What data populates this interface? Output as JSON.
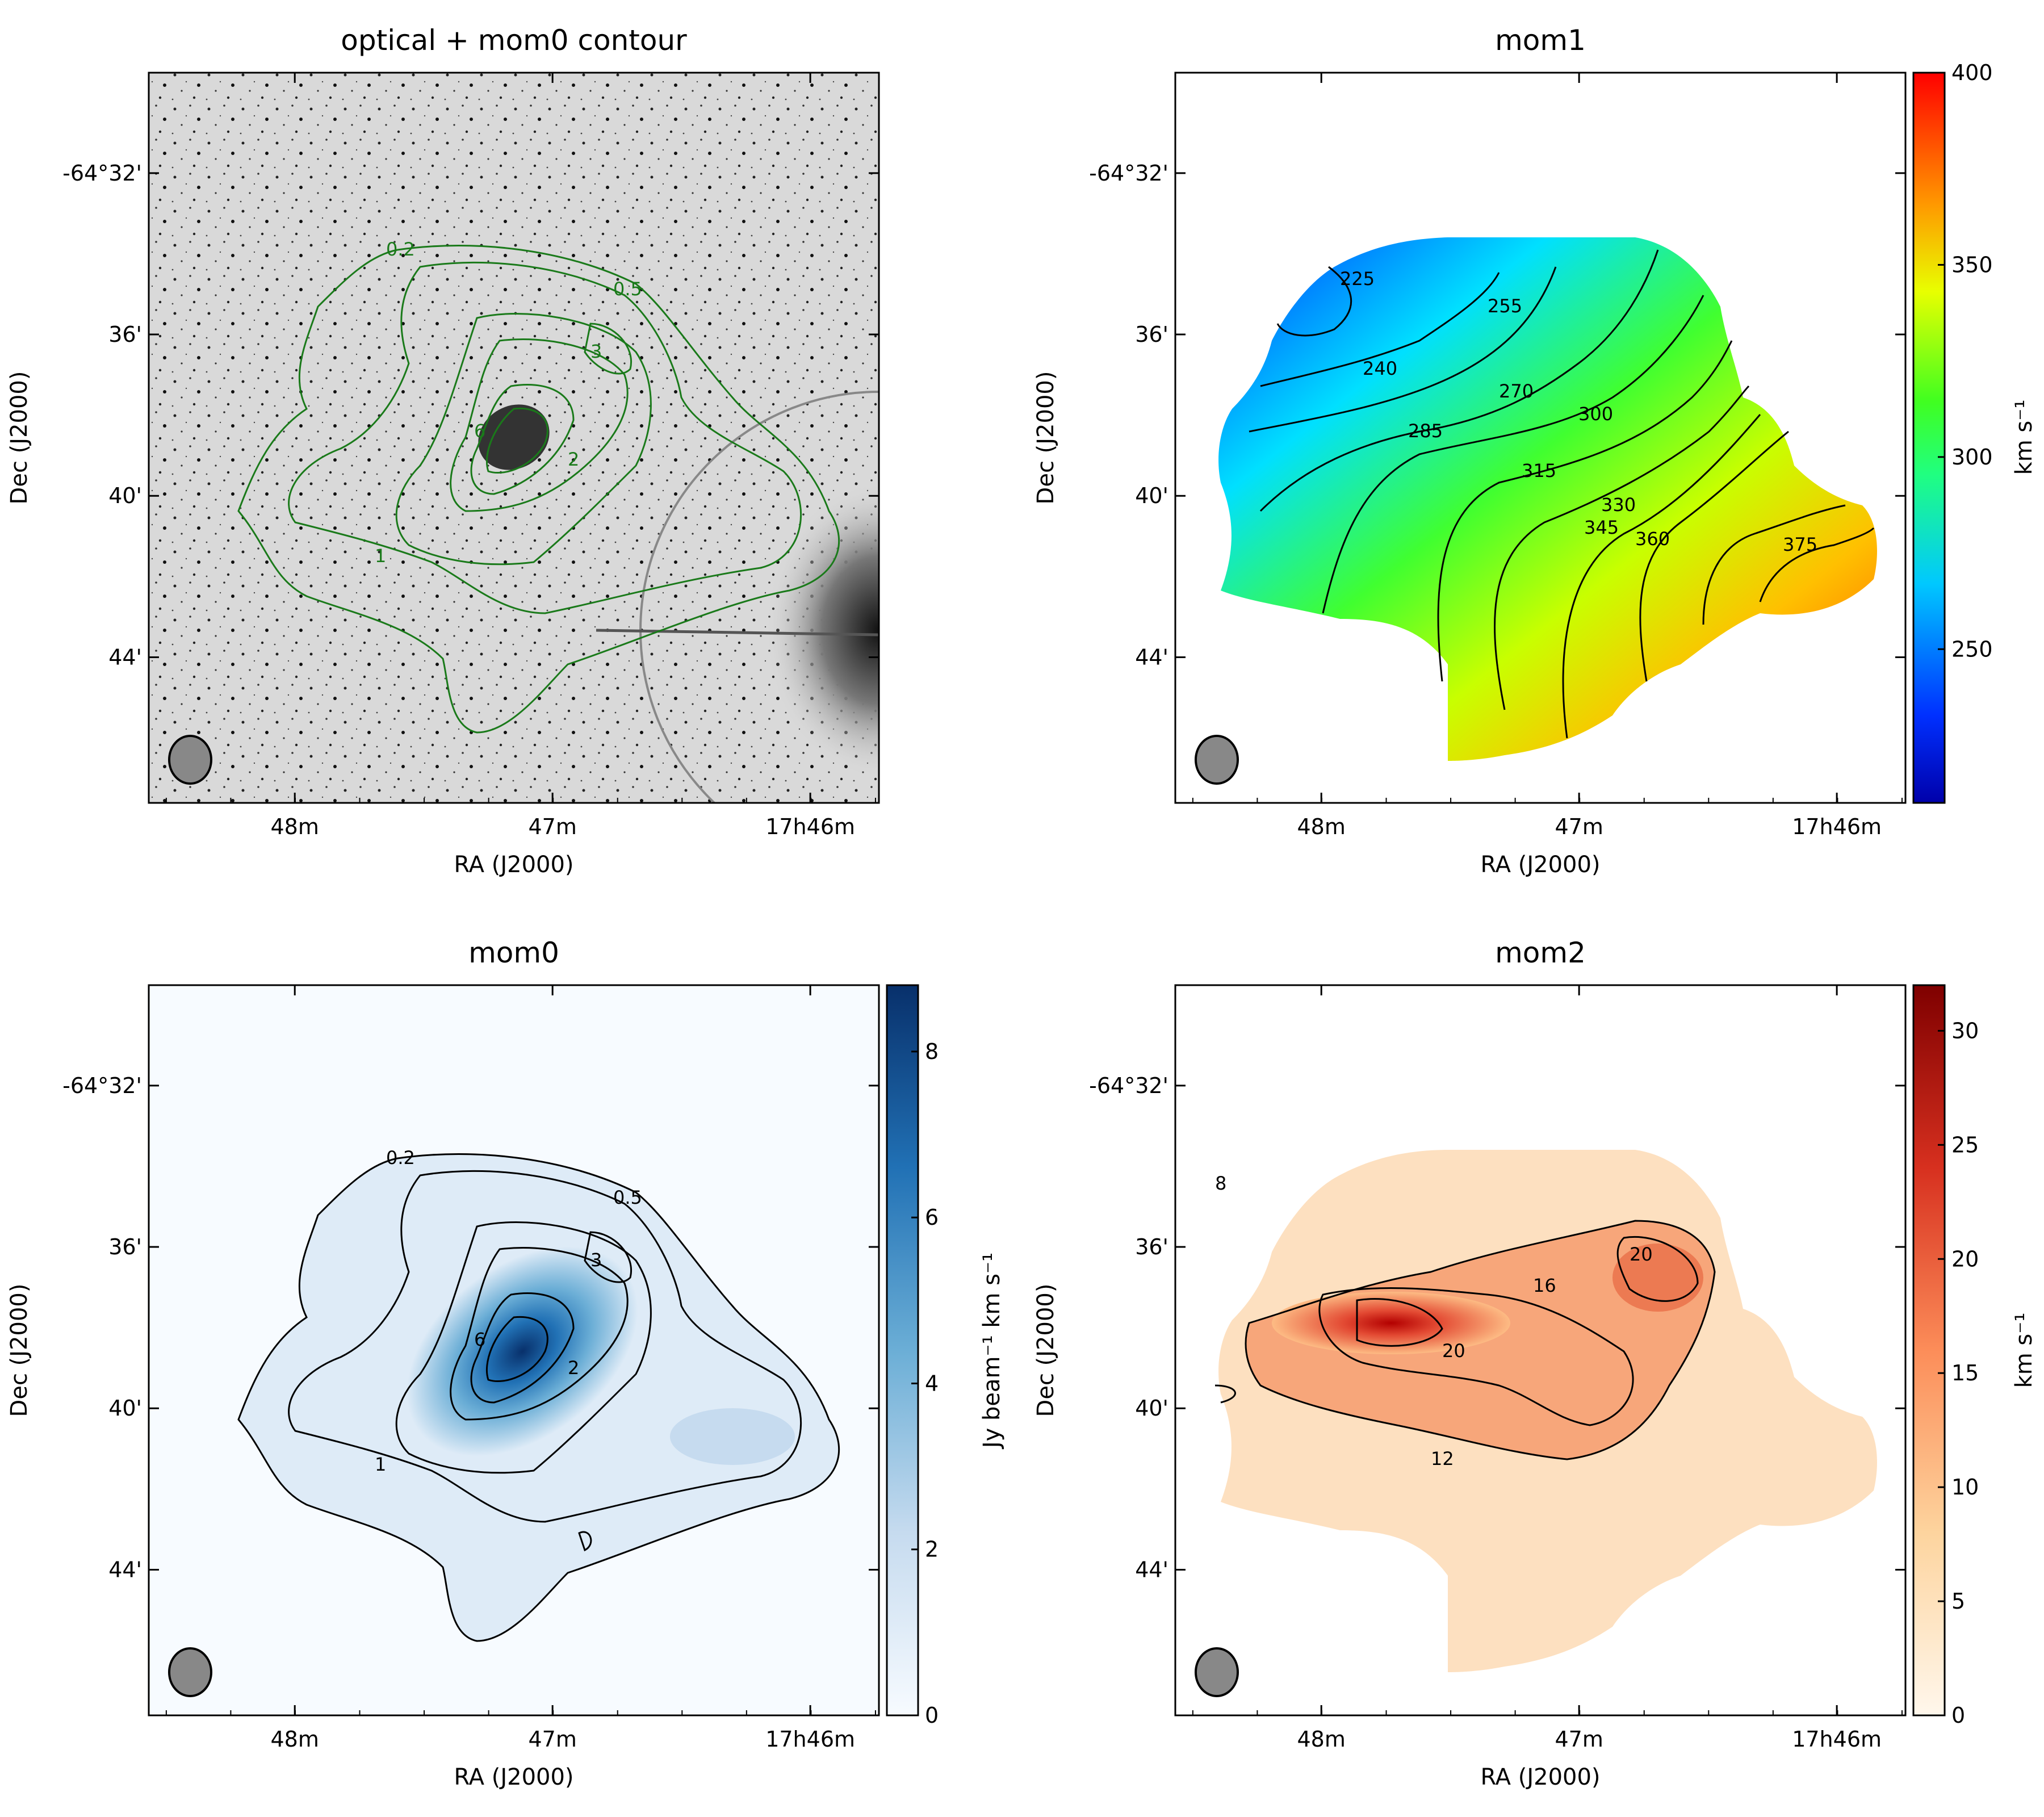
{
  "figure": {
    "panels": [
      {
        "id": "optical",
        "title": "optical + mom0 contour",
        "xlabel": "RA (J2000)",
        "ylabel": "Dec (J2000)",
        "xticks": [
          "48m",
          "47m",
          "17h46m"
        ],
        "yticks": [
          "-64°32'",
          "36'",
          "40'",
          "44'"
        ],
        "contour_levels": [
          "0.2",
          "0.5",
          "1",
          "2",
          "3",
          "6"
        ],
        "contour_color": "#1a7a1a",
        "beam": "beam ellipse"
      },
      {
        "id": "mom1",
        "title": "mom1",
        "xlabel": "RA (J2000)",
        "ylabel": "Dec (J2000)",
        "xticks": [
          "48m",
          "47m",
          "17h46m"
        ],
        "yticks": [
          "-64°32'",
          "36'",
          "40'",
          "44'"
        ],
        "colorbar": {
          "label": "km s⁻¹",
          "min": 210,
          "max": 400,
          "ticks": [
            "250",
            "300",
            "350",
            "400"
          ],
          "colormap": "jet"
        },
        "contour_levels": [
          "225",
          "240",
          "255",
          "270",
          "285",
          "300",
          "315",
          "330",
          "345",
          "360",
          "375"
        ]
      },
      {
        "id": "mom0",
        "title": "mom0",
        "xlabel": "RA (J2000)",
        "ylabel": "Dec (J2000)",
        "xticks": [
          "48m",
          "47m",
          "17h46m"
        ],
        "yticks": [
          "-64°32'",
          "36'",
          "40'",
          "44'"
        ],
        "colorbar": {
          "label": "Jy beam⁻¹ km s⁻¹",
          "min": 0,
          "max": 8.8,
          "ticks": [
            "0",
            "2",
            "4",
            "6",
            "8"
          ],
          "colormap": "Blues"
        },
        "contour_levels": [
          "0.2",
          "0.5",
          "1",
          "2",
          "3",
          "6"
        ]
      },
      {
        "id": "mom2",
        "title": "mom2",
        "xlabel": "RA (J2000)",
        "ylabel": "Dec (J2000)",
        "xticks": [
          "48m",
          "47m",
          "17h46m"
        ],
        "yticks": [
          "-64°32'",
          "36'",
          "40'",
          "44'"
        ],
        "colorbar": {
          "label": "km s⁻¹",
          "min": 0,
          "max": 32,
          "ticks": [
            "0",
            "5",
            "10",
            "15",
            "20",
            "25",
            "30"
          ],
          "colormap": "OrRd"
        },
        "contour_levels": [
          "8",
          "12",
          "16",
          "20"
        ]
      }
    ]
  },
  "chart_data": [
    {
      "type": "heatmap",
      "title": "optical + mom0 contour",
      "xlabel": "RA (J2000)",
      "ylabel": "Dec (J2000)",
      "x_ticks": [
        "48m",
        "47m",
        "17h46m"
      ],
      "y_ticks": [
        "-64°32'",
        "36'",
        "40'",
        "44'"
      ],
      "overlay": "greyscale optical image with green mom0 contours",
      "contour_levels": [
        0.2,
        0.5,
        1,
        2,
        3,
        6
      ]
    },
    {
      "type": "heatmap",
      "title": "mom1",
      "xlabel": "RA (J2000)",
      "ylabel": "Dec (J2000)",
      "x_ticks": [
        "48m",
        "47m",
        "17h46m"
      ],
      "y_ticks": [
        "-64°32'",
        "36'",
        "40'",
        "44'"
      ],
      "colorbar_label": "km s⁻¹",
      "colorbar_range": [
        210,
        400
      ],
      "colorbar_ticks": [
        250,
        300,
        350,
        400
      ],
      "colormap": "jet",
      "contour_levels": [
        225,
        240,
        255,
        270,
        285,
        300,
        315,
        330,
        345,
        360,
        375
      ]
    },
    {
      "type": "heatmap",
      "title": "mom0",
      "xlabel": "RA (J2000)",
      "ylabel": "Dec (J2000)",
      "x_ticks": [
        "48m",
        "47m",
        "17h46m"
      ],
      "y_ticks": [
        "-64°32'",
        "36'",
        "40'",
        "44'"
      ],
      "colorbar_label": "Jy beam⁻¹ km s⁻¹",
      "colorbar_range": [
        0,
        8.8
      ],
      "colorbar_ticks": [
        0,
        2,
        4,
        6,
        8
      ],
      "colormap": "Blues",
      "contour_levels": [
        0.2,
        0.5,
        1,
        2,
        3,
        6
      ]
    },
    {
      "type": "heatmap",
      "title": "mom2",
      "xlabel": "RA (J2000)",
      "ylabel": "Dec (J2000)",
      "x_ticks": [
        "48m",
        "47m",
        "17h46m"
      ],
      "y_ticks": [
        "-64°32'",
        "36'",
        "40'",
        "44'"
      ],
      "colorbar_label": "km s⁻¹",
      "colorbar_range": [
        0,
        32
      ],
      "colorbar_ticks": [
        0,
        5,
        10,
        15,
        20,
        25,
        30
      ],
      "colormap": "OrRd",
      "contour_levels": [
        8,
        12,
        16,
        20
      ]
    }
  ]
}
